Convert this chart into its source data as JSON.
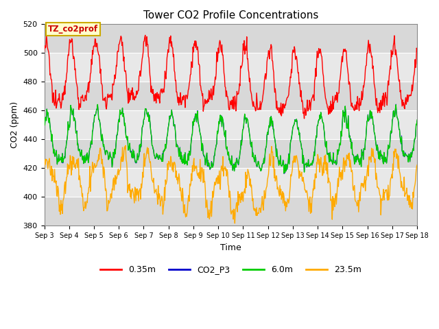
{
  "title": "Tower CO2 Profile Concentrations",
  "xlabel": "Time",
  "ylabel": "CO2 (ppm)",
  "ylim": [
    380,
    520
  ],
  "xlim": [
    0,
    15
  ],
  "x_tick_labels": [
    "Sep 3",
    "Sep 4",
    "Sep 5",
    "Sep 6",
    "Sep 7",
    "Sep 8",
    "Sep 9",
    "Sep 10",
    "Sep 11",
    "Sep 12",
    "Sep 13",
    "Sep 14",
    "Sep 15",
    "Sep 16",
    "Sep 17",
    "Sep 18"
  ],
  "legend_labels": [
    "0.35m",
    "CO2_P3",
    "6.0m",
    "23.5m"
  ],
  "legend_colors": [
    "#ff0000",
    "#0000ff",
    "#00cc00",
    "#ffaa00"
  ],
  "annotation_text": "TZ_co2prof",
  "annotation_bg": "#ffffcc",
  "annotation_border": "#ccaa00",
  "bg_color": "#ffffff",
  "plot_bg_color": "#e8e8e8",
  "band_color_light": "#d8d8d8",
  "band_color_dark": "#e8e8e8",
  "grid_color": "#ffffff",
  "title_fontsize": 11,
  "axis_fontsize": 9,
  "tick_fontsize": 8,
  "red_base": 480,
  "red_amp": 20,
  "green_base": 437,
  "green_amp": 16,
  "orange_base": 410,
  "orange_amp": 15,
  "n_per_day": 48,
  "n_days": 15
}
